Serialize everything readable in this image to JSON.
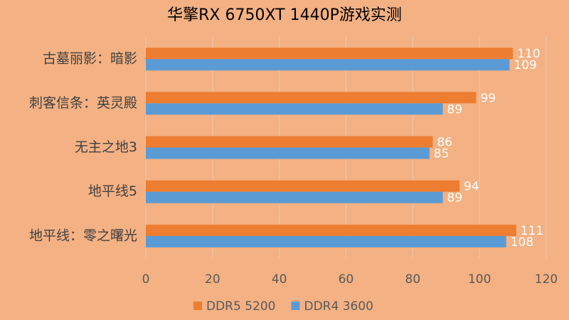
{
  "chart_data": {
    "type": "bar",
    "horizontal": true,
    "title": "华擎RX 6750XT 1440P游戏实测",
    "categories": [
      "古墓丽影：暗影",
      "刺客信条：英灵殿",
      "无主之地3",
      "地平线5",
      "地平线：零之曙光"
    ],
    "series": [
      {
        "name": "DDR5 5200",
        "color": "#ed7d31",
        "values": [
          110,
          99,
          86,
          94,
          111
        ]
      },
      {
        "name": "DDR4 3600",
        "color": "#5b9bd5",
        "values": [
          109,
          89,
          85,
          89,
          108
        ]
      }
    ],
    "xlim": [
      0,
      120
    ],
    "xticks": [
      0,
      20,
      40,
      60,
      80,
      100,
      120
    ],
    "grid": true,
    "legend": "bottom"
  }
}
